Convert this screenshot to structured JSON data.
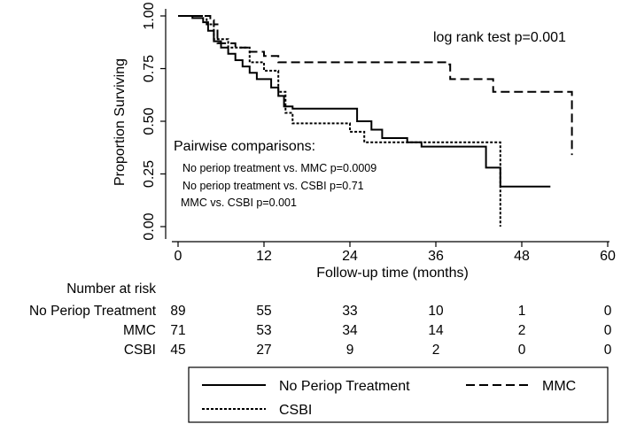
{
  "chart_data": {
    "type": "line",
    "subtype": "kaplan-meier",
    "xlabel": "Follow-up time (months)",
    "ylabel": "Proportion Surviving",
    "xlim": [
      0,
      60
    ],
    "ylim": [
      0,
      1
    ],
    "x_ticks": [
      "0",
      "12",
      "24",
      "36",
      "48",
      "60"
    ],
    "y_ticks": [
      "0.00",
      "0.25",
      "0.50",
      "0.75",
      "1.00"
    ],
    "annotation": "log rank test p=0.001",
    "pairwise": {
      "title": "Pairwise comparisons:",
      "lines": [
        "No periop treatment vs. MMC p=0.0009",
        "No periop treatment vs. CSBI p=0.71",
        "MMC vs. CSBI p=0.001"
      ]
    },
    "series": [
      {
        "name": "No Periop Treatment",
        "style": "solid",
        "points": [
          [
            0,
            1
          ],
          [
            2,
            1
          ],
          [
            2,
            0.99
          ],
          [
            3.5,
            0.99
          ],
          [
            3.5,
            0.97
          ],
          [
            4.2,
            0.97
          ],
          [
            4.2,
            0.93
          ],
          [
            5,
            0.93
          ],
          [
            5,
            0.88
          ],
          [
            6,
            0.88
          ],
          [
            6,
            0.85
          ],
          [
            7,
            0.85
          ],
          [
            7,
            0.82
          ],
          [
            8,
            0.82
          ],
          [
            8,
            0.79
          ],
          [
            9,
            0.79
          ],
          [
            9,
            0.76
          ],
          [
            10,
            0.76
          ],
          [
            10,
            0.73
          ],
          [
            11,
            0.73
          ],
          [
            11,
            0.7
          ],
          [
            13,
            0.7
          ],
          [
            13,
            0.66
          ],
          [
            14,
            0.66
          ],
          [
            14,
            0.62
          ],
          [
            14.8,
            0.62
          ],
          [
            14.8,
            0.57
          ],
          [
            16,
            0.57
          ],
          [
            16,
            0.56
          ],
          [
            25,
            0.56
          ],
          [
            25,
            0.5
          ],
          [
            27,
            0.5
          ],
          [
            27,
            0.46
          ],
          [
            28.5,
            0.46
          ],
          [
            28.5,
            0.42
          ],
          [
            32,
            0.42
          ],
          [
            32,
            0.4
          ],
          [
            34,
            0.4
          ],
          [
            34,
            0.38
          ],
          [
            43,
            0.38
          ],
          [
            43,
            0.28
          ],
          [
            45,
            0.28
          ],
          [
            45,
            0.19
          ],
          [
            52,
            0.19
          ]
        ]
      },
      {
        "name": "MMC",
        "style": "dashed",
        "points": [
          [
            0,
            1
          ],
          [
            4.5,
            1
          ],
          [
            4.5,
            0.98
          ],
          [
            5,
            0.98
          ],
          [
            5,
            0.96
          ],
          [
            5.5,
            0.96
          ],
          [
            5.5,
            0.87
          ],
          [
            8,
            0.87
          ],
          [
            8,
            0.85
          ],
          [
            10,
            0.85
          ],
          [
            10,
            0.83
          ],
          [
            12,
            0.83
          ],
          [
            12,
            0.81
          ],
          [
            14,
            0.81
          ],
          [
            14,
            0.78
          ],
          [
            37.5,
            0.78
          ],
          [
            37.5,
            0.77
          ],
          [
            38,
            0.77
          ],
          [
            38,
            0.7
          ],
          [
            44,
            0.7
          ],
          [
            44,
            0.64
          ],
          [
            55,
            0.64
          ],
          [
            55,
            0.34
          ]
        ]
      },
      {
        "name": "CSBI",
        "style": "dotted",
        "points": [
          [
            0,
            1
          ],
          [
            4,
            1
          ],
          [
            4,
            0.96
          ],
          [
            5,
            0.96
          ],
          [
            5,
            0.89
          ],
          [
            7,
            0.89
          ],
          [
            7,
            0.85
          ],
          [
            10,
            0.85
          ],
          [
            10,
            0.78
          ],
          [
            12,
            0.78
          ],
          [
            12,
            0.74
          ],
          [
            14,
            0.74
          ],
          [
            14,
            0.64
          ],
          [
            15,
            0.64
          ],
          [
            15,
            0.54
          ],
          [
            16,
            0.54
          ],
          [
            16,
            0.49
          ],
          [
            24,
            0.49
          ],
          [
            24,
            0.45
          ],
          [
            26,
            0.45
          ],
          [
            26,
            0.4
          ],
          [
            45,
            0.4
          ],
          [
            45,
            0
          ]
        ]
      }
    ],
    "number_at_risk": {
      "title": "Number at risk",
      "rows": [
        {
          "label": "No Periop Treatment",
          "values": [
            "89",
            "55",
            "33",
            "10",
            "1",
            "0"
          ]
        },
        {
          "label": "MMC",
          "values": [
            "71",
            "53",
            "34",
            "14",
            "2",
            "0"
          ]
        },
        {
          "label": "CSBI",
          "values": [
            "45",
            "27",
            "9",
            "2",
            "0",
            "0"
          ]
        }
      ]
    },
    "legend": [
      "No Periop Treatment",
      "MMC",
      "CSBI"
    ]
  }
}
